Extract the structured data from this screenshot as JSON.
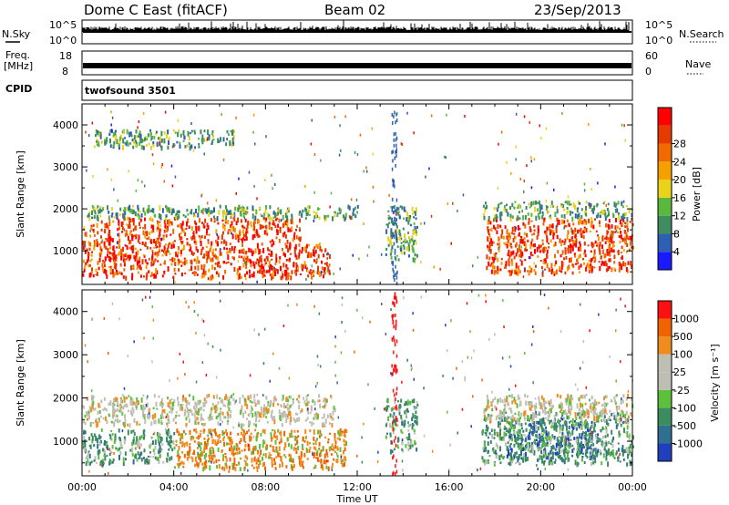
{
  "header": {
    "station": "Dome C East (fitACF)",
    "beam": "Beam 02",
    "date": "23/Sep/2013"
  },
  "top_panels": {
    "nsky_label": "N.Sky",
    "nsky_ticks": [
      "10^5",
      "10^0"
    ],
    "nsearch_label": "N.Search",
    "nsearch_ticks": [
      "10^5",
      "10^0"
    ],
    "freq_label_1": "Freq.",
    "freq_label_2": "[MHz]",
    "freq_ticks": [
      "18",
      "8"
    ],
    "nave_label": "Nave",
    "nave_ticks": [
      "60",
      "0"
    ],
    "cpid_label": "CPID",
    "cpid_value": "twofsound 3501"
  },
  "chart_data": [
    {
      "type": "heatmap",
      "panel": "power",
      "ylabel": "Slant Range [km]",
      "xlabel": "",
      "x_ticks": [
        "00:00",
        "04:00",
        "08:00",
        "12:00",
        "16:00",
        "20:00",
        "00:00"
      ],
      "y_ticks": [
        1000,
        2000,
        3000,
        4000
      ],
      "ylim": [
        200,
        4500
      ],
      "colorbar": {
        "label": "Power [dB]",
        "ticks": [
          "4",
          "8",
          "12",
          "16",
          "20",
          "24",
          "28"
        ],
        "colors": [
          "#1a1aff",
          "#2f5fb0",
          "#3e8c5f",
          "#5cb83c",
          "#e8d21a",
          "#f5a000",
          "#f06a00",
          "#e53a00",
          "#ff0000"
        ]
      },
      "echo_regions": [
        {
          "t0": 0.0,
          "t1": 10.8,
          "r0": 400,
          "r1": 1200,
          "level": "high"
        },
        {
          "t0": 0.0,
          "t1": 9.5,
          "r0": 1200,
          "r1": 1800,
          "level": "high"
        },
        {
          "t0": 0.0,
          "t1": 12.0,
          "r0": 1800,
          "r1": 2100,
          "level": "low"
        },
        {
          "t0": 0.5,
          "t1": 6.6,
          "r0": 3500,
          "r1": 3900,
          "level": "low"
        },
        {
          "t0": 13.2,
          "t1": 14.6,
          "r0": 800,
          "r1": 2100,
          "level": "low"
        },
        {
          "t0": 17.6,
          "t1": 24.0,
          "r0": 500,
          "r1": 1800,
          "level": "high"
        },
        {
          "t0": 17.4,
          "t1": 24.0,
          "r0": 1800,
          "r1": 2200,
          "level": "low"
        }
      ]
    },
    {
      "type": "heatmap",
      "panel": "velocity",
      "ylabel": "Slant Range [km]",
      "xlabel": "Time UT",
      "x_ticks": [
        "00:00",
        "04:00",
        "08:00",
        "12:00",
        "16:00",
        "20:00",
        "00:00"
      ],
      "y_ticks": [
        1000,
        2000,
        3000,
        4000
      ],
      "ylim": [
        200,
        4500
      ],
      "colorbar": {
        "label": "Velocity [m s⁻¹]",
        "ticks": [
          "1000",
          "500",
          "100",
          "25",
          "-25",
          "-100",
          "-500",
          "-1000"
        ],
        "colors": [
          "#1f3fbf",
          "#2f6f8f",
          "#3c8c60",
          "#5cc03a",
          "#bebeb4",
          "#bebeb4",
          "#f08c1e",
          "#f06400",
          "#ff1010"
        ]
      },
      "echo_regions": [
        {
          "t0": 0.0,
          "t1": 11.0,
          "r0": 1400,
          "r1": 2100,
          "level": "grey"
        },
        {
          "t0": 4.0,
          "t1": 11.5,
          "r0": 400,
          "r1": 1300,
          "level": "orange"
        },
        {
          "t0": 0.0,
          "t1": 4.0,
          "r0": 500,
          "r1": 1300,
          "level": "green"
        },
        {
          "t0": 13.2,
          "t1": 14.6,
          "r0": 800,
          "r1": 2000,
          "level": "green"
        },
        {
          "t0": 18.5,
          "t1": 22.5,
          "r0": 600,
          "r1": 1500,
          "level": "blue"
        },
        {
          "t0": 17.4,
          "t1": 24.0,
          "r0": 500,
          "r1": 1700,
          "level": "green"
        },
        {
          "t0": 17.4,
          "t1": 24.0,
          "r0": 1500,
          "r1": 2100,
          "level": "grey"
        }
      ]
    }
  ]
}
